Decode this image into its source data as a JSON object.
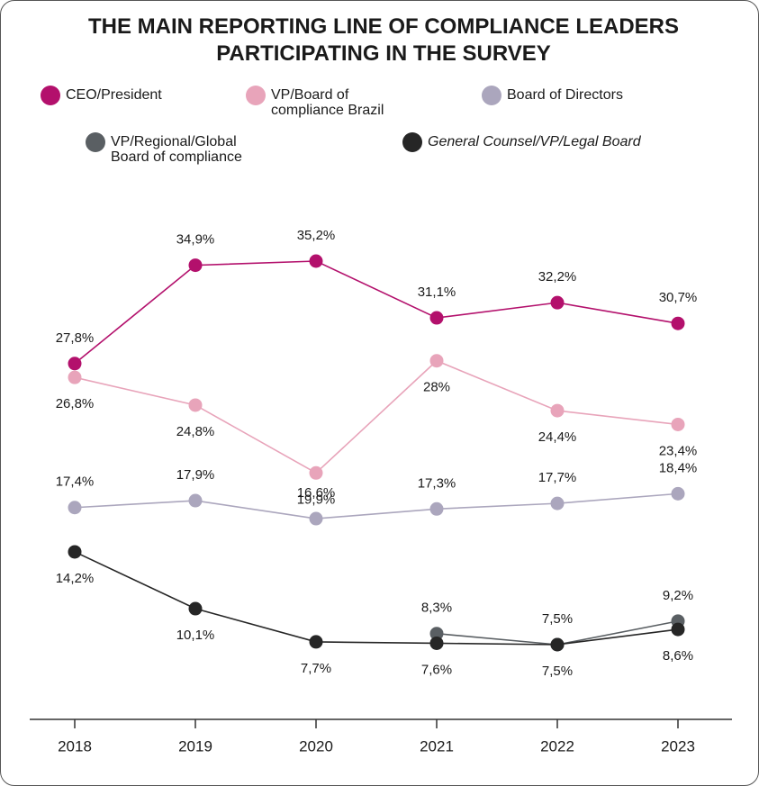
{
  "chart_data": {
    "type": "line",
    "title": "THE MAIN REPORTING LINE OF COMPLIANCE LEADERS PARTICIPATING IN THE SURVEY",
    "categories": [
      "2018",
      "2019",
      "2020",
      "2021",
      "2022",
      "2023"
    ],
    "series": [
      {
        "name": "CEO/President",
        "color": "#b3106c",
        "values": [
          27.8,
          34.9,
          35.2,
          31.1,
          32.2,
          30.7
        ],
        "value_labels": [
          "27,8%",
          "34,9%",
          "35,2%",
          "31,1%",
          "32,2%",
          "30,7%"
        ]
      },
      {
        "name": "VP/Board of compliance Brazil",
        "color": "#e8a4ba",
        "values": [
          26.8,
          24.8,
          19.9,
          28,
          24.4,
          23.4
        ],
        "value_labels": [
          "26,8%",
          "24,8%",
          "19,9%",
          "28%",
          "24,4%",
          "23,4%"
        ]
      },
      {
        "name": "Board of Directors",
        "color": "#aba6bd",
        "values": [
          17.4,
          17.9,
          16.6,
          17.3,
          17.7,
          18.4
        ],
        "value_labels": [
          "17,4%",
          "17,9%",
          "16,6%",
          "17,3%",
          "17,7%",
          "18,4%"
        ]
      },
      {
        "name": "VP/Regional/Global Board of compliance",
        "color": "#5a5f63",
        "values": [
          null,
          null,
          null,
          8.3,
          7.5,
          9.2
        ],
        "value_labels": [
          null,
          null,
          null,
          "8,3%",
          "7,5%",
          "9,2%"
        ]
      },
      {
        "name": "General Counsel/VP/Legal Board",
        "color": "#262626",
        "values": [
          14.2,
          10.1,
          7.7,
          7.6,
          7.5,
          8.6
        ],
        "value_labels": [
          "14,2%",
          "10,1%",
          "7,7%",
          "7,6%",
          "7,5%",
          "8,6%"
        ]
      }
    ]
  }
}
